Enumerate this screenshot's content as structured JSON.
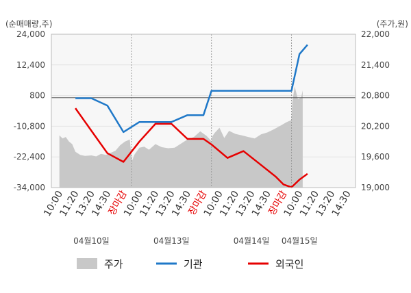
{
  "chart_data": {
    "type": "line",
    "left_axis": {
      "unit": "(순매매량,주)",
      "ylim": [
        -34000,
        24000
      ],
      "ticks": [
        24000,
        12400,
        800,
        -10800,
        -22400,
        -34000
      ],
      "tick_labels": [
        "24,000",
        "12,400",
        "800",
        "-10,800",
        "-22,400",
        "-34,000"
      ]
    },
    "right_axis": {
      "unit": "(주가,원)",
      "ylim": [
        19000,
        22000
      ],
      "ticks": [
        22000,
        21400,
        20800,
        20200,
        19600,
        19000
      ],
      "tick_labels": [
        "22,000",
        "21,400",
        "20,800",
        "20,200",
        "19,600",
        "19,000"
      ]
    },
    "x_tick_labels": [
      {
        "label": "10:00",
        "close": false
      },
      {
        "label": "11:20",
        "close": false
      },
      {
        "label": "13:20",
        "close": false
      },
      {
        "label": "14:30",
        "close": false
      },
      {
        "label": "장마감",
        "close": true
      },
      {
        "label": "10:00",
        "close": false
      },
      {
        "label": "11:20",
        "close": false
      },
      {
        "label": "13:20",
        "close": false
      },
      {
        "label": "14:30",
        "close": false
      },
      {
        "label": "장마감",
        "close": true
      },
      {
        "label": "10:00",
        "close": false
      },
      {
        "label": "11:20",
        "close": false
      },
      {
        "label": "13:20",
        "close": false
      },
      {
        "label": "14:30",
        "close": false
      },
      {
        "label": "장마감",
        "close": true
      },
      {
        "label": "10:00",
        "close": false
      },
      {
        "label": "11:20",
        "close": false
      },
      {
        "label": "13:20",
        "close": false
      },
      {
        "label": "14:30",
        "close": false
      }
    ],
    "date_labels": [
      {
        "label": "04월10일",
        "slot": 2
      },
      {
        "label": "04월13일",
        "slot": 7
      },
      {
        "label": "04월14일",
        "slot": 12
      },
      {
        "label": "04월15일",
        "slot": 15
      }
    ],
    "day_separators": [
      4.5,
      9.5,
      14.5
    ],
    "reference_line": {
      "axis": "left",
      "value": 0
    },
    "series": [
      {
        "name": "주가",
        "axis": "right",
        "kind": "area",
        "color": "#c8c8c8",
        "x": [
          0,
          0.2,
          0.4,
          0.6,
          0.8,
          1.0,
          1.3,
          1.6,
          2.0,
          2.3,
          2.6,
          2.9,
          3.2,
          3.5,
          3.8,
          4.1,
          4.4,
          4.5,
          4.55,
          4.7,
          5.0,
          5.3,
          5.6,
          6.0,
          6.4,
          6.8,
          7.2,
          7.6,
          8.0,
          8.4,
          8.8,
          9.2,
          9.5,
          9.55,
          9.7,
          10.0,
          10.3,
          10.6,
          11.0,
          11.4,
          11.8,
          12.2,
          12.6,
          13.0,
          13.4,
          13.8,
          14.2,
          14.5,
          14.55,
          14.7,
          14.9,
          15.1,
          15.2
        ],
        "values": [
          20020,
          19960,
          19990,
          19900,
          19850,
          19700,
          19640,
          19620,
          19630,
          19610,
          19660,
          19640,
          19680,
          19720,
          19830,
          19900,
          19940,
          19620,
          19530,
          19650,
          19780,
          19800,
          19740,
          19850,
          19790,
          19770,
          19780,
          19860,
          19940,
          19990,
          20100,
          20010,
          19910,
          20000,
          20070,
          20170,
          19970,
          20110,
          20050,
          20020,
          19990,
          19960,
          20040,
          20080,
          20140,
          20210,
          20280,
          20320,
          20670,
          20980,
          20730,
          20760,
          20900
        ]
      },
      {
        "name": "기관",
        "axis": "left",
        "kind": "line",
        "color": "#1f78c8",
        "x": [
          1.0,
          2.0,
          3.0,
          4.0,
          5.0,
          6.0,
          7.0,
          8.0,
          9.0,
          9.5,
          10.5,
          11.5,
          12.5,
          13.5,
          14.0,
          14.5,
          15.0,
          15.5
        ],
        "values": [
          -200,
          -200,
          -3000,
          -13000,
          -9200,
          -9200,
          -9200,
          -6600,
          -6600,
          2600,
          2600,
          2600,
          2600,
          2600,
          2600,
          2600,
          16500,
          20000
        ]
      },
      {
        "name": "외국인",
        "axis": "left",
        "kind": "line",
        "color": "#e60000",
        "x": [
          1.0,
          2.0,
          3.0,
          4.0,
          5.0,
          6.0,
          7.0,
          8.0,
          9.0,
          9.5,
          10.5,
          11.5,
          12.5,
          13.5,
          14.0,
          14.5,
          15.0,
          15.5
        ],
        "values": [
          -4000,
          -12500,
          -21000,
          -24300,
          -16600,
          -9900,
          -9900,
          -15600,
          -15600,
          -17700,
          -22800,
          -20200,
          -25000,
          -29800,
          -32800,
          -33900,
          -31000,
          -28800
        ]
      }
    ],
    "legend": [
      {
        "label": "주가",
        "marker": "box",
        "color": "#c8c8c8"
      },
      {
        "label": "기관",
        "marker": "line",
        "color": "#1f78c8"
      },
      {
        "label": "외국인",
        "marker": "line",
        "color": "#e60000"
      }
    ],
    "grid": {
      "horizontal": true,
      "vertical": false
    }
  }
}
